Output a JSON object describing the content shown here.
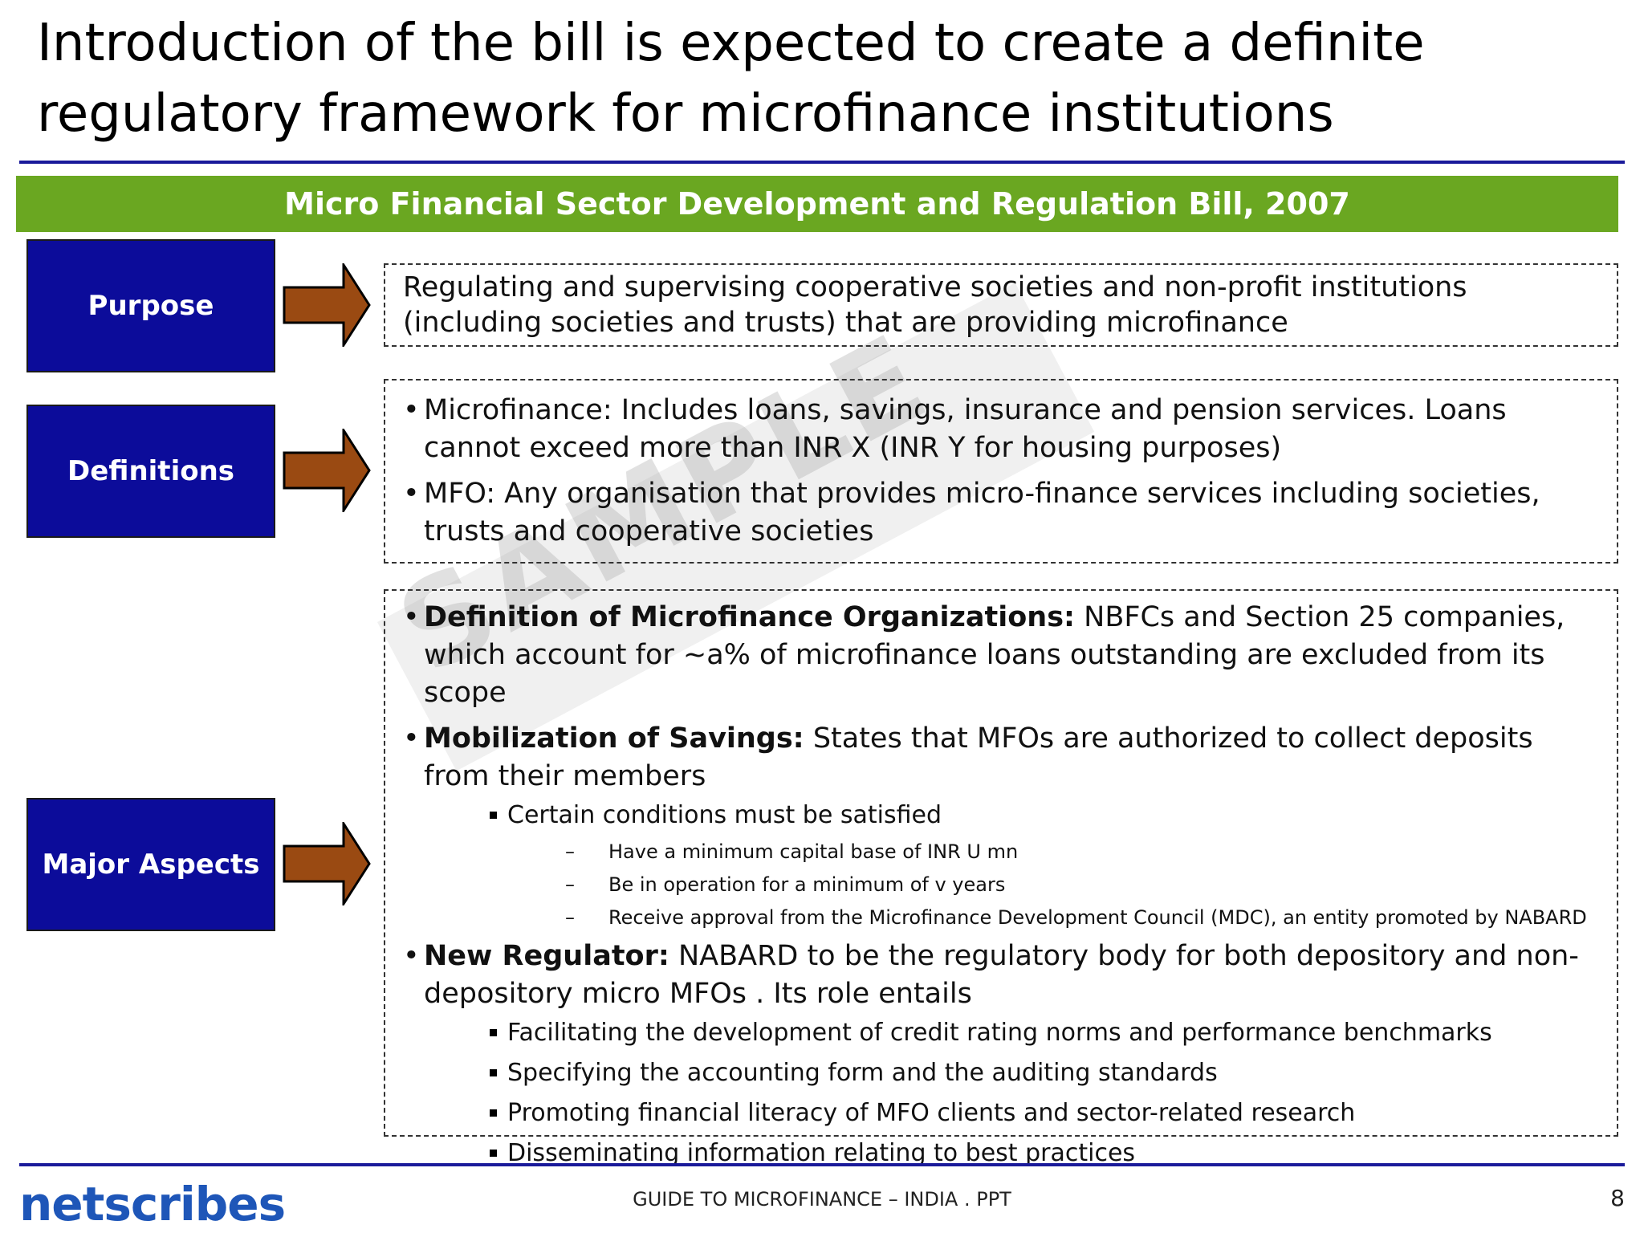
{
  "title": "Introduction of the bill is expected to create a definite regulatory framework for microfinance institutions",
  "banner": "Micro Financial Sector Development and Regulation Bill, 2007",
  "watermark": "SAMPLE",
  "colors": {
    "banner": "#6aa721",
    "label_box": "#0c0c9a",
    "arrow": "#9a4a12",
    "rule": "#1a1a9a",
    "logo": "#1e56b8"
  },
  "sections": {
    "purpose": {
      "label": "Purpose",
      "text": "Regulating and supervising cooperative societies and non-profit institutions (including societies and trusts) that are providing microfinance"
    },
    "definitions": {
      "label": "Definitions",
      "bullets": [
        "Microfinance: Includes loans, savings, insurance and pension services. Loans cannot exceed more than INR X (INR Y for housing purposes)",
        "MFO: Any organisation that provides micro-finance services including societies, trusts and cooperative societies"
      ]
    },
    "major": {
      "label": "Major Aspects",
      "b1_bold": "Definition of Microfinance Organizations:",
      "b1_text": " NBFCs and Section 25 companies, which account for ~a% of microfinance loans outstanding are excluded from its scope",
      "b2_bold": "Mobilization of Savings:",
      "b2_text": " States that MFOs are authorized to collect deposits from their members",
      "b2_sub": "Certain conditions must be satisfied",
      "b2_subsub": [
        "Have a minimum capital base of INR U mn",
        "Be in operation for a minimum of v years",
        "Receive approval from the Microfinance Development Council (MDC), an entity promoted by NABARD"
      ],
      "b3_bold": "New Regulator:",
      "b3_text": " NABARD to be the regulatory body for both depository and non-depository micro MFOs . Its role entails",
      "b3_subs": [
        "Facilitating the development of credit rating norms and performance benchmarks",
        "Specifying the accounting form and the auditing standards",
        "Promoting financial literacy of MFO clients and sector-related research",
        "Disseminating information relating to best practices"
      ]
    }
  },
  "footer": {
    "logo": "netscribes",
    "text": "GUIDE TO MICROFINANCE – INDIA . PPT",
    "page": "8"
  }
}
